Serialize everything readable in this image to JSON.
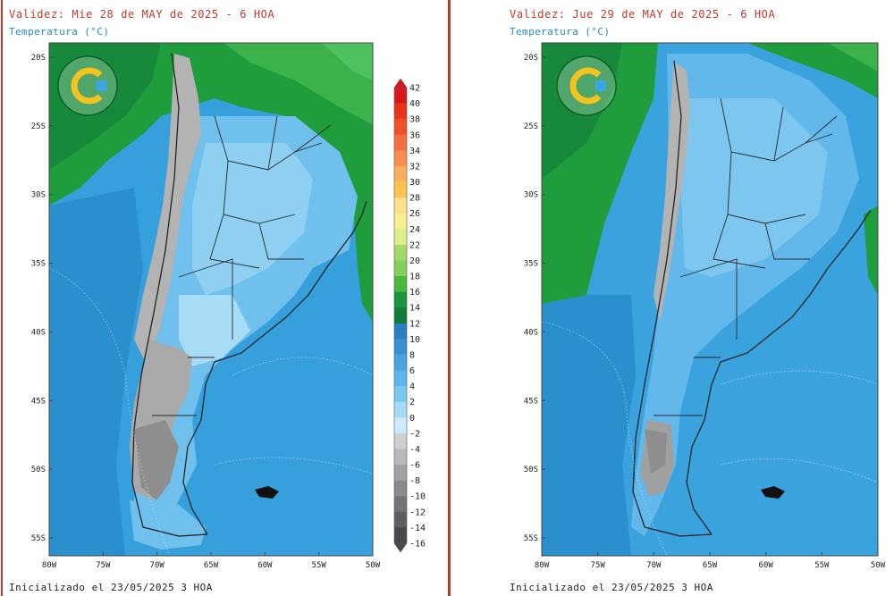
{
  "panels": [
    {
      "title": "Validez: Mie 28 de MAY de 2025 - 6 HOA",
      "subtitle": "Temperatura (°C)",
      "footer": "Inicializado el 23/05/2025 3 HOA"
    },
    {
      "title": "Validez: Jue 29 de MAY de 2025 - 6 HOA",
      "subtitle": "Temperatura (°C)",
      "footer": "Inicializado el 23/05/2025 3 HOA"
    }
  ],
  "map": {
    "lat_labels": [
      "20S",
      "25S",
      "30S",
      "35S",
      "40S",
      "45S",
      "50S",
      "55S"
    ],
    "lon_labels": [
      "80W",
      "75W",
      "70W",
      "65W",
      "60W",
      "55W",
      "50W"
    ],
    "lat_range": [
      -57,
      -19
    ],
    "lon_range": [
      -80,
      -50
    ]
  },
  "colorbar": {
    "labels": [
      "42",
      "40",
      "38",
      "36",
      "34",
      "32",
      "30",
      "28",
      "26",
      "24",
      "22",
      "20",
      "18",
      "16",
      "14",
      "12",
      "10",
      "8",
      "6",
      "4",
      "2",
      "0",
      "-2",
      "-4",
      "-6",
      "-8",
      "-10",
      "-12",
      "-14",
      "-16"
    ],
    "colors": [
      "#d7191c",
      "#e8341c",
      "#f0502a",
      "#f46d43",
      "#f88d52",
      "#fdae61",
      "#fec44f",
      "#fee08b",
      "#f4ee8e",
      "#d9ef8b",
      "#a6d96a",
      "#7fcf5a",
      "#48b83c",
      "#1a9641",
      "#0f7d35",
      "#2b7fc1",
      "#3791d4",
      "#46a3e0",
      "#5ab6ea",
      "#7ac7f0",
      "#a4daf6",
      "#c9ebfb",
      "#cfcfcf",
      "#b8b8b8",
      "#a0a0a0",
      "#8a8a8a",
      "#747474",
      "#5e5e5e",
      "#484848"
    ]
  },
  "colors": {
    "title": "#c0392b",
    "subtitle": "#1d8fbf",
    "land_green": "#1f9c3c",
    "ocean_blue": "#2f9ad6",
    "cold_gray": "#b0b0b0"
  },
  "logo": {
    "name": "smn-argentina-logo"
  }
}
